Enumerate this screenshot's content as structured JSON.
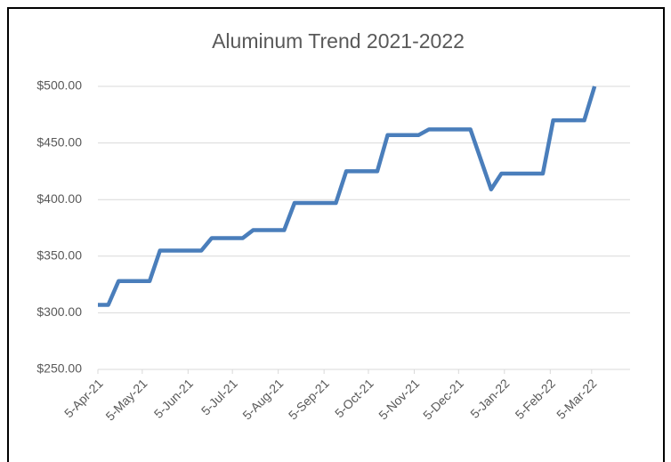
{
  "chart_data": {
    "type": "line",
    "title": "Aluminum Trend 2021-2022",
    "x": [
      "2021-04-05",
      "2021-04-12",
      "2021-04-19",
      "2021-05-10",
      "2021-05-17",
      "2021-06-14",
      "2021-06-21",
      "2021-07-12",
      "2021-07-19",
      "2021-08-09",
      "2021-08-16",
      "2021-09-13",
      "2021-09-20",
      "2021-10-11",
      "2021-10-18",
      "2021-11-08",
      "2021-11-15",
      "2021-12-13",
      "2021-12-27",
      "2022-01-03",
      "2022-01-31",
      "2022-02-07",
      "2022-02-28",
      "2022-03-07"
    ],
    "series": [
      {
        "color": "#4a7ebb",
        "values": [
          307,
          307,
          328,
          328,
          355,
          355,
          366,
          366,
          373,
          373,
          397,
          397,
          425,
          425,
          457,
          457,
          462,
          462,
          409,
          423,
          423,
          470,
          470,
          500
        ]
      }
    ],
    "xlim": [
      "2021-04-05",
      "2022-03-31"
    ],
    "xticks": [
      {
        "value": "2021-04-05",
        "label": "5-Apr-21"
      },
      {
        "value": "2021-05-05",
        "label": "5-May-21"
      },
      {
        "value": "2021-06-05",
        "label": "5-Jun-21"
      },
      {
        "value": "2021-07-05",
        "label": "5-Jul-21"
      },
      {
        "value": "2021-08-05",
        "label": "5-Aug-21"
      },
      {
        "value": "2021-09-05",
        "label": "5-Sep-21"
      },
      {
        "value": "2021-10-05",
        "label": "5-Oct-21"
      },
      {
        "value": "2021-11-05",
        "label": "5-Nov-21"
      },
      {
        "value": "2021-12-05",
        "label": "5-Dec-21"
      },
      {
        "value": "2022-01-05",
        "label": "5-Jan-22"
      },
      {
        "value": "2022-02-05",
        "label": "5-Feb-22"
      },
      {
        "value": "2022-03-05",
        "label": "5-Mar-22"
      }
    ],
    "ylim": [
      250,
      500
    ],
    "yticks": [
      {
        "value": 250,
        "label": "$250.00"
      },
      {
        "value": 300,
        "label": "$300.00"
      },
      {
        "value": 350,
        "label": "$350.00"
      },
      {
        "value": 400,
        "label": "$400.00"
      },
      {
        "value": 450,
        "label": "$450.00"
      },
      {
        "value": 500,
        "label": "$500.00"
      }
    ],
    "grid": true
  }
}
